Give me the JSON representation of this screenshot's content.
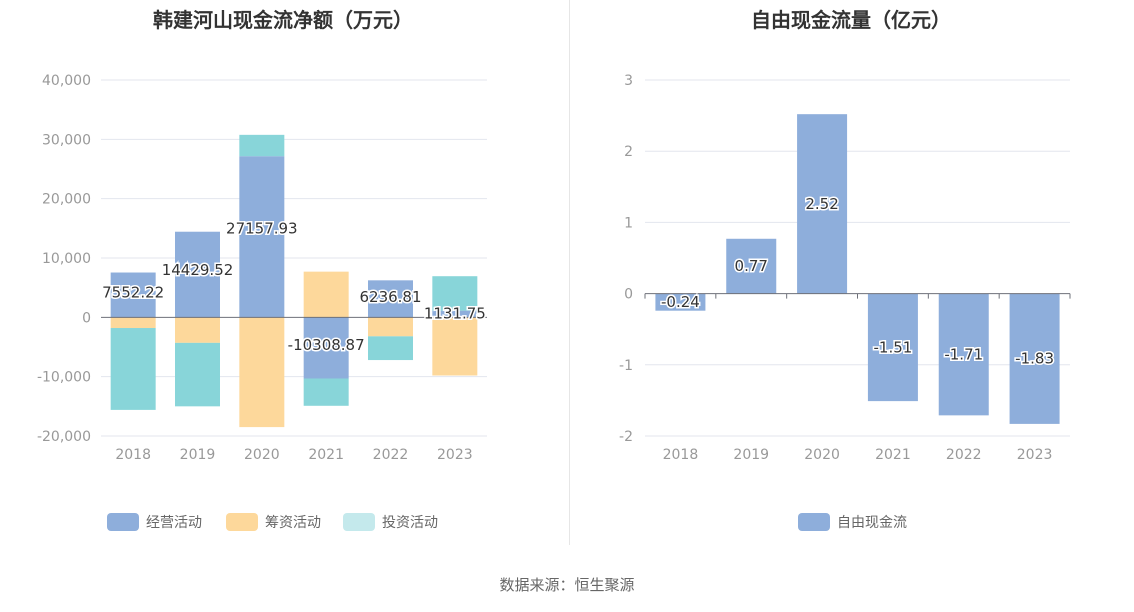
{
  "source": "数据来源：恒生聚源",
  "chart_data": [
    {
      "type": "bar",
      "stacked": true,
      "title": "韩建河山现金流净额（万元）",
      "categories": [
        "2018",
        "2019",
        "2020",
        "2021",
        "2022",
        "2023"
      ],
      "ylim": [
        -20000,
        40000
      ],
      "yticks": [
        -20000,
        -10000,
        0,
        10000,
        20000,
        30000,
        40000
      ],
      "ytick_labels": [
        "-20,000",
        "-10,000",
        "0",
        "10,000",
        "20,000",
        "30,000",
        "40,000"
      ],
      "grid": true,
      "legend_position": "bottom",
      "series": [
        {
          "name": "经营活动",
          "color": "#8eaedb",
          "values": [
            7552.22,
            14429.52,
            27157.93,
            -10308.87,
            6236.81,
            1131.75
          ],
          "labels": [
            "7552.22",
            "14429.52",
            "27157.93",
            "-10308.87",
            "6236.81",
            "1131.75"
          ]
        },
        {
          "name": "筹资活动",
          "color": "#fdd89b",
          "values": [
            -1800,
            -4300,
            -18500,
            7700,
            -3200,
            -9800
          ]
        },
        {
          "name": "投资活动",
          "color": "#88d5d9",
          "legend_color": "#c4e9ec",
          "values": [
            -13800,
            -10700,
            3600,
            -4600,
            -4000,
            5800
          ]
        }
      ]
    },
    {
      "type": "bar",
      "title": "自由现金流量（亿元）",
      "categories": [
        "2018",
        "2019",
        "2020",
        "2021",
        "2022",
        "2023"
      ],
      "ylim": [
        -2,
        3
      ],
      "yticks": [
        -2,
        -1,
        0,
        1,
        2,
        3
      ],
      "ytick_labels": [
        "-2",
        "-1",
        "0",
        "1",
        "2",
        "3"
      ],
      "grid": true,
      "legend_position": "bottom",
      "series": [
        {
          "name": "自由现金流",
          "color": "#8eaedb",
          "values": [
            -0.24,
            0.77,
            2.52,
            -1.51,
            -1.71,
            -1.83
          ],
          "labels": [
            "-0.24",
            "0.77",
            "2.52",
            "-1.51",
            "-1.71",
            "-1.83"
          ]
        }
      ]
    }
  ]
}
